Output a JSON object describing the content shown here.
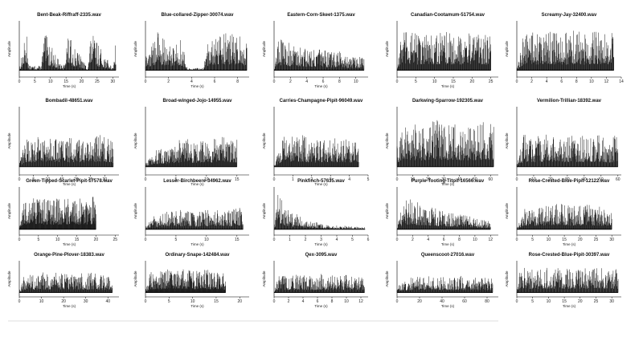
{
  "chart_data": [
    {
      "type": "line",
      "title": "Bent-Beak-Riffraff-2335.wav",
      "xlabel": "Time (s)",
      "ylabel": "Amplitude",
      "xlim": [
        0,
        32
      ],
      "xticks": [
        0,
        5,
        10,
        15,
        20,
        25,
        30
      ],
      "series": [
        {
          "x": [
            0,
            2.5,
            3,
            7,
            8,
            14,
            15.5,
            22,
            23,
            30,
            31
          ],
          "y": [
            0.05,
            0.95,
            0.1,
            0.1,
            0.85,
            0.05,
            0.8,
            0.05,
            0.85,
            0.05,
            0.85
          ]
        }
      ]
    },
    {
      "type": "line",
      "title": "Blue-collared-Zipper-30074.wav",
      "xlabel": "Time (s)",
      "ylabel": "Amplitude",
      "xlim": [
        0,
        9
      ],
      "xticks": [
        0,
        2,
        4,
        6,
        8
      ],
      "series": [
        {
          "x": [
            0,
            1,
            2,
            3,
            3.7,
            5,
            5.5,
            6.5,
            7.5,
            8.8
          ],
          "y": [
            0.3,
            0.9,
            0.55,
            0.75,
            0.05,
            0.05,
            0.75,
            0.9,
            0.8,
            0.7
          ]
        }
      ]
    },
    {
      "type": "line",
      "title": "Eastern-Corn-Skeet-1375.wav",
      "xlabel": "Time (s)",
      "ylabel": "Amplitude",
      "xlim": [
        0,
        11.5
      ],
      "xticks": [
        0,
        2,
        4,
        6,
        8,
        10
      ],
      "series": [
        {
          "x": [
            0,
            0.5,
            1,
            2,
            3,
            4,
            5,
            6,
            7,
            8,
            9,
            10,
            11
          ],
          "y": [
            0.05,
            0.8,
            0.7,
            0.6,
            0.55,
            0.5,
            0.5,
            0.45,
            0.4,
            0.45,
            0.35,
            0.3,
            0.3
          ]
        }
      ]
    },
    {
      "type": "line",
      "title": "Canadian-Cootamum-51754.wav",
      "xlabel": "Time (s)",
      "ylabel": "Amplitude",
      "xlim": [
        0,
        27
      ],
      "xticks": [
        0,
        5,
        10,
        15,
        20,
        25
      ],
      "series": [
        {
          "x": [
            0,
            1,
            3,
            5,
            7,
            9,
            11,
            13,
            15,
            17,
            19,
            21,
            23,
            25
          ],
          "y": [
            0.05,
            0.85,
            0.85,
            0.85,
            0.85,
            0.85,
            0.85,
            0.85,
            0.85,
            0.85,
            0.85,
            0.85,
            0.85,
            0.85
          ]
        }
      ]
    },
    {
      "type": "line",
      "title": "Screamy-Jay-32400.wav",
      "xlabel": "",
      "ylabel": "Amplitude",
      "xlim": [
        0,
        14
      ],
      "xticks": [
        0,
        2,
        4,
        6,
        8,
        10,
        12,
        14
      ],
      "series": [
        {
          "x": [
            0,
            1,
            2,
            3,
            4,
            5,
            6,
            7,
            8,
            9,
            10,
            11,
            12,
            13
          ],
          "y": [
            0.05,
            0.9,
            0.85,
            0.8,
            0.9,
            0.85,
            0.8,
            0.85,
            0.9,
            0.8,
            0.85,
            0.85,
            0.9,
            0.8
          ]
        }
      ]
    },
    {
      "type": "line",
      "title": "Bombadil-48651.wav",
      "xlabel": "Time (s)",
      "ylabel": "Amplitude",
      "xlim": [
        0,
        35
      ],
      "xticks": [
        0,
        5,
        10,
        15,
        20,
        25,
        30
      ],
      "series": [
        {
          "x": [
            0,
            2,
            6,
            11,
            15,
            21,
            24,
            29,
            33
          ],
          "y": [
            0.05,
            0.5,
            0.55,
            0.6,
            0.5,
            0.55,
            0.5,
            0.6,
            0.45
          ]
        }
      ]
    },
    {
      "type": "line",
      "title": "Broad-winged-Jojo-14955.wav",
      "xlabel": "Time (s)",
      "ylabel": "Amplitude",
      "xlim": [
        0,
        17
      ],
      "xticks": [
        0,
        5,
        10,
        15
      ],
      "series": [
        {
          "x": [
            0,
            1.5,
            4,
            6,
            8.5,
            11,
            13,
            15
          ],
          "y": [
            0.05,
            0.3,
            0.35,
            0.55,
            0.45,
            0.5,
            0.55,
            0.5
          ]
        }
      ]
    },
    {
      "type": "line",
      "title": "Carries-Champagne-Pipit-96049.wav",
      "xlabel": "Time (s)",
      "ylabel": "Amplitude",
      "xlim": [
        0,
        5
      ],
      "xticks": [
        0,
        1,
        2,
        3,
        4,
        5
      ],
      "series": [
        {
          "x": [
            0,
            0.5,
            1,
            1.5,
            2,
            2.5,
            3,
            3.5,
            4,
            4.5
          ],
          "y": [
            0.05,
            0.6,
            0.55,
            0.6,
            0.5,
            0.55,
            0.5,
            0.55,
            0.5,
            0.55
          ]
        }
      ]
    },
    {
      "type": "line",
      "title": "Darkwing-Sparrow-192305.wav",
      "xlabel": "Time (s)",
      "ylabel": "Amplitude",
      "xlim": [
        0,
        65
      ],
      "xticks": [
        0,
        10,
        20,
        30,
        40,
        50,
        60
      ],
      "series": [
        {
          "x": [
            0,
            5,
            15,
            25,
            35,
            45,
            55,
            62
          ],
          "y": [
            0.5,
            0.8,
            0.75,
            0.85,
            0.8,
            0.75,
            0.85,
            0.8
          ]
        }
      ]
    },
    {
      "type": "line",
      "title": "Vermilion-Trillian-18392.wav",
      "xlabel": "",
      "ylabel": "Amplitude",
      "xlim": [
        0,
        62
      ],
      "xticks": [
        0,
        10,
        20,
        30,
        40,
        50,
        60
      ],
      "series": [
        {
          "x": [
            0,
            4,
            11,
            18,
            26,
            33,
            41,
            48,
            55,
            60
          ],
          "y": [
            0.05,
            0.6,
            0.55,
            0.6,
            0.5,
            0.6,
            0.55,
            0.6,
            0.5,
            0.6
          ]
        }
      ]
    },
    {
      "type": "line",
      "title": "Green-Tipped-Scarlet-Pipit-17578.wav",
      "xlabel": "Time (s)",
      "ylabel": "Amplitude",
      "xlim": [
        0,
        26
      ],
      "xticks": [
        0,
        5,
        10,
        15,
        20,
        25
      ],
      "series": [
        {
          "x": [
            0,
            1.5,
            8,
            14,
            20
          ],
          "y": [
            0.05,
            0.85,
            0.8,
            0.8,
            0.85
          ]
        }
      ]
    },
    {
      "type": "line",
      "title": "Lesser-Birchbeere-34962.wav",
      "xlabel": "Time (s)",
      "ylabel": "Amplitude",
      "xlim": [
        0,
        17
      ],
      "xticks": [
        0,
        5,
        10,
        15
      ],
      "series": [
        {
          "x": [
            0,
            1.5,
            3.5,
            6,
            8.5,
            11,
            13.5,
            16
          ],
          "y": [
            0.05,
            0.4,
            0.45,
            0.5,
            0.45,
            0.55,
            0.5,
            0.6
          ]
        }
      ]
    },
    {
      "type": "line",
      "title": "Pinkfinch-57635.wav",
      "xlabel": "Time (s)",
      "ylabel": "Amplitude",
      "xlim": [
        0,
        6
      ],
      "xticks": [
        0,
        1,
        2,
        3,
        4,
        5,
        6
      ],
      "series": [
        {
          "x": [
            0,
            0.2,
            0.6,
            1.2,
            2,
            3,
            4,
            5,
            5.8
          ],
          "y": [
            0.05,
            0.95,
            0.7,
            0.45,
            0.25,
            0.15,
            0.1,
            0.08,
            0.06
          ]
        }
      ]
    },
    {
      "type": "line",
      "title": "Purple-Tooting-Titpit-16566.wav",
      "xlabel": "Time (s)",
      "ylabel": "Amplitude",
      "xlim": [
        0,
        13
      ],
      "xticks": [
        0,
        2,
        4,
        6,
        8,
        10,
        12
      ],
      "series": [
        {
          "x": [
            0,
            1,
            2,
            3,
            4,
            5,
            6,
            7,
            8,
            9,
            10,
            11,
            12
          ],
          "y": [
            0.05,
            0.85,
            0.75,
            0.7,
            0.6,
            0.55,
            0.5,
            0.45,
            0.4,
            0.35,
            0.3,
            0.25,
            0.2
          ]
        }
      ]
    },
    {
      "type": "line",
      "title": "Rose-Crested-Blue-Pipit-12122.wav",
      "xlabel": "Time (s)",
      "ylabel": "Amplitude",
      "xlim": [
        0,
        33
      ],
      "xticks": [
        0,
        5,
        10,
        15,
        20,
        25,
        30
      ],
      "series": [
        {
          "x": [
            0,
            2,
            6,
            10,
            14,
            18,
            22,
            26,
            30
          ],
          "y": [
            0.05,
            0.55,
            0.6,
            0.65,
            0.7,
            0.6,
            0.65,
            0.6,
            0.55
          ]
        }
      ]
    },
    {
      "type": "line",
      "title": "Orange-Pine-Plover-18383.wav",
      "xlabel": "Time (s)",
      "ylabel": "Amplitude",
      "xlim": [
        0,
        45
      ],
      "xticks": [
        0,
        10,
        20,
        30,
        40
      ],
      "series": [
        {
          "x": [
            0,
            2,
            6,
            10,
            14,
            18,
            22,
            26,
            30,
            34,
            38,
            42
          ],
          "y": [
            0.05,
            0.6,
            0.65,
            0.7,
            0.65,
            0.7,
            0.65,
            0.7,
            0.65,
            0.7,
            0.6,
            0.55
          ]
        }
      ]
    },
    {
      "type": "line",
      "title": "Ordinary-Snape-142484.wav",
      "xlabel": "Time (s)",
      "ylabel": "Amplitude",
      "xlim": [
        0,
        22
      ],
      "xticks": [
        0,
        5,
        10,
        15,
        20
      ],
      "series": [
        {
          "x": [
            0,
            1,
            3,
            5,
            7,
            9,
            11,
            13,
            15,
            17
          ],
          "y": [
            0.05,
            0.7,
            0.75,
            0.8,
            0.85,
            0.8,
            0.75,
            0.8,
            0.7,
            0.65
          ]
        }
      ]
    },
    {
      "type": "line",
      "title": "Qex-3095.wav",
      "xlabel": "Time (s)",
      "ylabel": "Amplitude",
      "xlim": [
        0,
        13
      ],
      "xticks": [
        0,
        2,
        4,
        6,
        8,
        10,
        12
      ],
      "series": [
        {
          "x": [
            0,
            0.5,
            1.5,
            2.5,
            3.5,
            4.5,
            5.5,
            6.5,
            7.5,
            8.5,
            9.5,
            10.5,
            11.5,
            12.5
          ],
          "y": [
            0.05,
            0.55,
            0.6,
            0.6,
            0.65,
            0.6,
            0.6,
            0.65,
            0.6,
            0.65,
            0.6,
            0.6,
            0.6,
            0.55
          ]
        }
      ]
    },
    {
      "type": "line",
      "title": "Queenscoot-27016.wav",
      "xlabel": "Time (s)",
      "ylabel": "Amplitude",
      "xlim": [
        0,
        90
      ],
      "xticks": [
        0,
        20,
        40,
        60,
        80
      ],
      "series": [
        {
          "x": [
            0,
            5,
            15,
            25,
            35,
            45,
            55,
            65,
            75,
            85
          ],
          "y": [
            0.2,
            0.5,
            0.55,
            0.6,
            0.5,
            0.55,
            0.6,
            0.5,
            0.55,
            0.5
          ]
        }
      ]
    },
    {
      "type": "line",
      "title": "Rose-Crested-Blue-Pipit-30397.wav",
      "xlabel": "Time (s)",
      "ylabel": "Amplitude",
      "xlim": [
        0,
        33
      ],
      "xticks": [
        0,
        5,
        10,
        15,
        20,
        25,
        30
      ],
      "series": [
        {
          "x": [
            0,
            1,
            5,
            11,
            17,
            23,
            29,
            32
          ],
          "y": [
            0.05,
            0.85,
            0.85,
            0.85,
            0.85,
            0.85,
            0.85,
            0.85
          ]
        }
      ]
    }
  ]
}
